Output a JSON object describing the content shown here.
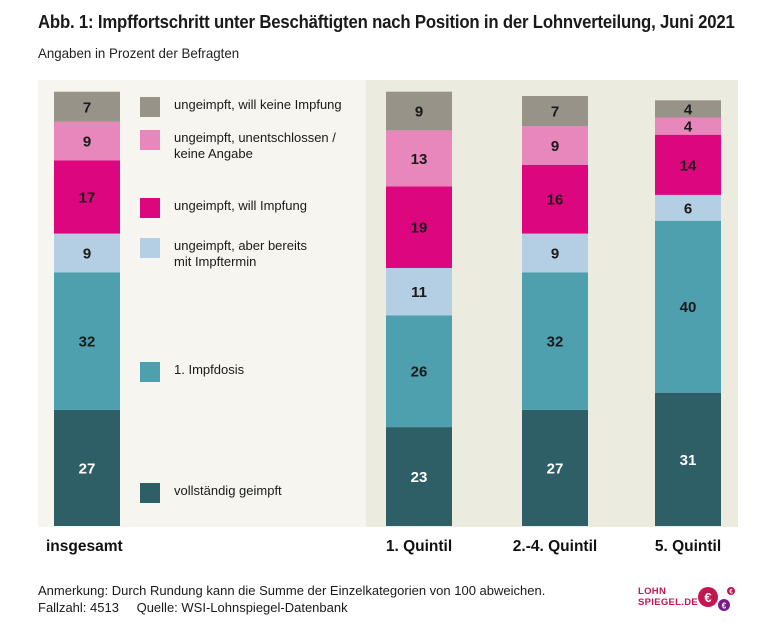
{
  "title": "Abb. 1: Impffortschritt unter Beschäftigten nach Position in der Lohnverteilung, Juni 2021",
  "subtitle": "Angaben in Prozent der Befragten",
  "chart_data": {
    "type": "bar",
    "stacked": true,
    "orientation": "vertical",
    "categories": [
      "insgesamt",
      "1. Quintil",
      "2.-4. Quintil",
      "5. Quintil"
    ],
    "series": [
      {
        "name": "vollständig geimpft",
        "color": "#2e5f66",
        "label_color": "#ffffff",
        "values": [
          27,
          23,
          27,
          31
        ]
      },
      {
        "name": "1. Impfdosis",
        "color": "#4fa0ae",
        "label_color": "#1a1a1a",
        "values": [
          32,
          26,
          32,
          40
        ]
      },
      {
        "name": "ungeimpft, aber bereits\nmit Impftermin",
        "color": "#b4cfe3",
        "label_color": "#1a1a1a",
        "values": [
          9,
          11,
          9,
          6
        ]
      },
      {
        "name": "ungeimpft, will Impfung",
        "color": "#dc067f",
        "label_color": "#1a1a1a",
        "values": [
          17,
          19,
          16,
          14
        ]
      },
      {
        "name": "ungeimpft, unentschlossen /\nkeine Angabe",
        "color": "#e887bb",
        "label_color": "#1a1a1a",
        "values": [
          9,
          13,
          9,
          4
        ]
      },
      {
        "name": "ungeimpft, will keine Impfung",
        "color": "#979389",
        "label_color": "#1a1a1a",
        "values": [
          7,
          9,
          7,
          4
        ]
      }
    ],
    "ylim": [
      0,
      100
    ],
    "grid": false,
    "legend_position": "left, inside chart area"
  },
  "notes": {
    "remark": "Anmerkung: Durch Rundung kann die Summe der Einzelkategorien von 100 abweichen.",
    "cases_label": "Fallzahl:",
    "cases_value": "4513",
    "source": "Quelle: WSI-Lohnspiegel-Datenbank"
  },
  "logo": {
    "line1": "LOHN",
    "line2": "SPIEGEL.DE",
    "colors": {
      "brand": "#c5164f",
      "accent": "#7a1d8c"
    }
  }
}
